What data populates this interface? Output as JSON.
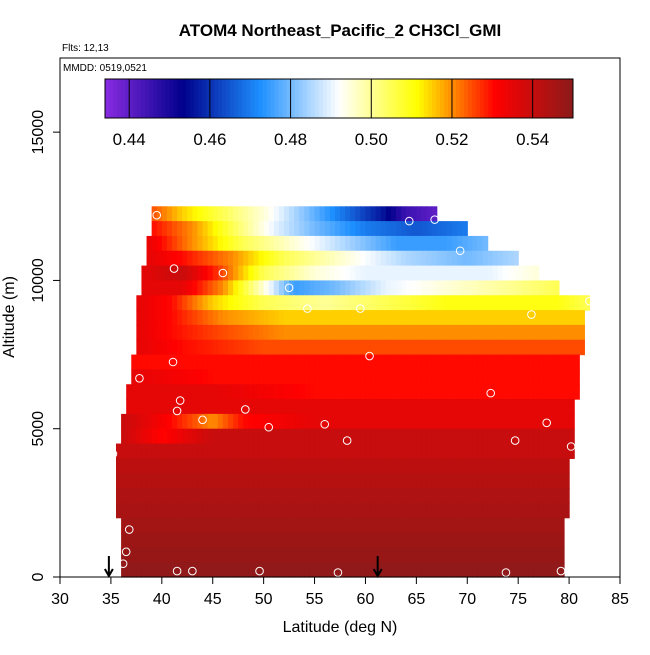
{
  "chart_data": {
    "type": "heatmap",
    "title": "ATOM4 Northeast_Pacific_2 CH3Cl_GMI",
    "flights_label": "Flts: 12,13",
    "dates_label": "MMDD: 0519,0521",
    "xlabel": "Latitude (deg N)",
    "ylabel": "Altitude (m)",
    "xlim": [
      30,
      85
    ],
    "ylim": [
      0,
      17500
    ],
    "x_ticks": [
      "30",
      "35",
      "40",
      "45",
      "50",
      "55",
      "60",
      "65",
      "70",
      "75",
      "80",
      "85"
    ],
    "y_ticks": [
      "0",
      "5000",
      "10000",
      "15000"
    ],
    "colorbar": {
      "min": 0.434,
      "max": 0.55,
      "ticks": [
        "0.44",
        "0.46",
        "0.48",
        "0.50",
        "0.52",
        "0.54"
      ],
      "colors": [
        "#8a2be2",
        "#00008b",
        "#1e90ff",
        "#ffffff",
        "#ffff00",
        "#ff0000",
        "#8b1a1a"
      ]
    },
    "layers": [
      {
        "alt": 12000,
        "lat_start": 39,
        "lat_end": 67,
        "values": [
          [
            39,
            0.525
          ],
          [
            42,
            0.515
          ],
          [
            46,
            0.505
          ],
          [
            50,
            0.495
          ],
          [
            53,
            0.485
          ],
          [
            56,
            0.475
          ],
          [
            59,
            0.465
          ],
          [
            62,
            0.455
          ],
          [
            64,
            0.445
          ],
          [
            67,
            0.44
          ]
        ]
      },
      {
        "alt": 11500,
        "lat_start": 39,
        "lat_end": 70,
        "values": [
          [
            39,
            0.53
          ],
          [
            43,
            0.52
          ],
          [
            47,
            0.505
          ],
          [
            51,
            0.49
          ],
          [
            55,
            0.48
          ],
          [
            60,
            0.47
          ],
          [
            65,
            0.465
          ],
          [
            70,
            0.47
          ]
        ]
      },
      {
        "alt": 11000,
        "lat_start": 38.5,
        "lat_end": 72,
        "values": [
          [
            38.5,
            0.535
          ],
          [
            43,
            0.52
          ],
          [
            48,
            0.505
          ],
          [
            53,
            0.495
          ],
          [
            58,
            0.485
          ],
          [
            63,
            0.475
          ],
          [
            68,
            0.475
          ],
          [
            72,
            0.48
          ]
        ]
      },
      {
        "alt": 10500,
        "lat_start": 38.5,
        "lat_end": 75,
        "values": [
          [
            38.5,
            0.535
          ],
          [
            42,
            0.53
          ],
          [
            47,
            0.52
          ],
          [
            52,
            0.505
          ],
          [
            58,
            0.495
          ],
          [
            64,
            0.485
          ],
          [
            70,
            0.48
          ],
          [
            75,
            0.485
          ]
        ]
      },
      {
        "alt": 10000,
        "lat_start": 38,
        "lat_end": 77,
        "values": [
          [
            38,
            0.535
          ],
          [
            42,
            0.54
          ],
          [
            46,
            0.525
          ],
          [
            50,
            0.505
          ],
          [
            55,
            0.495
          ],
          [
            60,
            0.49
          ],
          [
            66,
            0.49
          ],
          [
            72,
            0.49
          ],
          [
            77,
            0.495
          ]
        ]
      },
      {
        "alt": 9500,
        "lat_start": 38,
        "lat_end": 79,
        "values": [
          [
            38,
            0.535
          ],
          [
            42,
            0.535
          ],
          [
            46,
            0.52
          ],
          [
            50,
            0.495
          ],
          [
            53,
            0.475
          ],
          [
            57,
            0.48
          ],
          [
            62,
            0.49
          ],
          [
            68,
            0.495
          ],
          [
            74,
            0.5
          ],
          [
            79,
            0.505
          ]
        ]
      },
      {
        "alt": 9000,
        "lat_start": 37.5,
        "lat_end": 82,
        "values": [
          [
            37.5,
            0.535
          ],
          [
            41,
            0.53
          ],
          [
            45,
            0.515
          ],
          [
            50,
            0.505
          ],
          [
            56,
            0.5
          ],
          [
            62,
            0.505
          ],
          [
            68,
            0.51
          ],
          [
            74,
            0.51
          ],
          [
            79,
            0.51
          ],
          [
            82,
            0.505
          ]
        ]
      },
      {
        "alt": 8500,
        "lat_start": 37.5,
        "lat_end": 81.5,
        "values": [
          [
            37.5,
            0.535
          ],
          [
            41,
            0.53
          ],
          [
            46,
            0.52
          ],
          [
            52,
            0.515
          ],
          [
            58,
            0.515
          ],
          [
            65,
            0.515
          ],
          [
            72,
            0.515
          ],
          [
            78,
            0.515
          ],
          [
            81.5,
            0.515
          ]
        ]
      },
      {
        "alt": 8000,
        "lat_start": 37.5,
        "lat_end": 81.5,
        "values": [
          [
            37.5,
            0.535
          ],
          [
            41,
            0.53
          ],
          [
            46,
            0.525
          ],
          [
            52,
            0.52
          ],
          [
            60,
            0.52
          ],
          [
            68,
            0.52
          ],
          [
            75,
            0.52
          ],
          [
            81.5,
            0.52
          ]
        ]
      },
      {
        "alt": 7500,
        "lat_start": 37.5,
        "lat_end": 81.5,
        "values": [
          [
            37.5,
            0.535
          ],
          [
            42,
            0.53
          ],
          [
            50,
            0.525
          ],
          [
            60,
            0.525
          ],
          [
            70,
            0.525
          ],
          [
            81.5,
            0.525
          ]
        ]
      },
      {
        "alt": 7000,
        "lat_start": 37,
        "lat_end": 81,
        "values": [
          [
            37,
            0.53
          ],
          [
            45,
            0.53
          ],
          [
            55,
            0.53
          ],
          [
            65,
            0.53
          ],
          [
            75,
            0.53
          ],
          [
            81,
            0.53
          ]
        ]
      },
      {
        "alt": 6500,
        "lat_start": 37,
        "lat_end": 81,
        "values": [
          [
            37,
            0.535
          ],
          [
            45,
            0.53
          ],
          [
            55,
            0.53
          ],
          [
            65,
            0.53
          ],
          [
            75,
            0.53
          ],
          [
            81,
            0.53
          ]
        ]
      },
      {
        "alt": 6000,
        "lat_start": 36.5,
        "lat_end": 81,
        "values": [
          [
            36.5,
            0.535
          ],
          [
            45,
            0.535
          ],
          [
            55,
            0.53
          ],
          [
            65,
            0.53
          ],
          [
            75,
            0.53
          ],
          [
            81,
            0.53
          ]
        ]
      },
      {
        "alt": 5500,
        "lat_start": 36.5,
        "lat_end": 80.5,
        "values": [
          [
            36.5,
            0.535
          ],
          [
            45,
            0.535
          ],
          [
            55,
            0.535
          ],
          [
            65,
            0.535
          ],
          [
            75,
            0.535
          ],
          [
            80.5,
            0.535
          ]
        ]
      },
      {
        "alt": 5000,
        "lat_start": 36,
        "lat_end": 80.5,
        "values": [
          [
            36,
            0.54
          ],
          [
            41,
            0.53
          ],
          [
            45,
            0.52
          ],
          [
            48,
            0.53
          ],
          [
            55,
            0.535
          ],
          [
            65,
            0.535
          ],
          [
            75,
            0.535
          ],
          [
            80.5,
            0.535
          ]
        ]
      },
      {
        "alt": 4500,
        "lat_start": 36,
        "lat_end": 80.5,
        "values": [
          [
            36,
            0.54
          ],
          [
            40,
            0.53
          ],
          [
            45,
            0.54
          ],
          [
            55,
            0.54
          ],
          [
            65,
            0.54
          ],
          [
            75,
            0.54
          ],
          [
            80.5,
            0.54
          ]
        ]
      },
      {
        "alt": 4000,
        "lat_start": 35.5,
        "lat_end": 80.5,
        "values": [
          [
            35.5,
            0.54
          ],
          [
            45,
            0.54
          ],
          [
            55,
            0.54
          ],
          [
            65,
            0.54
          ],
          [
            75,
            0.54
          ],
          [
            80.5,
            0.54
          ]
        ]
      },
      {
        "alt": 3500,
        "lat_start": 35.5,
        "lat_end": 80,
        "values": [
          [
            35.5,
            0.542
          ],
          [
            50,
            0.542
          ],
          [
            65,
            0.542
          ],
          [
            80,
            0.542
          ]
        ]
      },
      {
        "alt": 3000,
        "lat_start": 35.5,
        "lat_end": 80,
        "values": [
          [
            35.5,
            0.543
          ],
          [
            50,
            0.543
          ],
          [
            65,
            0.543
          ],
          [
            80,
            0.543
          ]
        ]
      },
      {
        "alt": 2500,
        "lat_start": 35.5,
        "lat_end": 80,
        "values": [
          [
            35.5,
            0.544
          ],
          [
            50,
            0.544
          ],
          [
            65,
            0.544
          ],
          [
            80,
            0.544
          ]
        ]
      },
      {
        "alt": 2000,
        "lat_start": 35.5,
        "lat_end": 80,
        "values": [
          [
            35.5,
            0.545
          ],
          [
            50,
            0.545
          ],
          [
            65,
            0.545
          ],
          [
            80,
            0.545
          ]
        ]
      },
      {
        "alt": 1500,
        "lat_start": 36,
        "lat_end": 79.5,
        "values": [
          [
            36,
            0.546
          ],
          [
            50,
            0.546
          ],
          [
            65,
            0.546
          ],
          [
            79.5,
            0.546
          ]
        ]
      },
      {
        "alt": 1000,
        "lat_start": 36,
        "lat_end": 79.5,
        "values": [
          [
            36,
            0.547
          ],
          [
            50,
            0.547
          ],
          [
            65,
            0.547
          ],
          [
            79.5,
            0.547
          ]
        ]
      },
      {
        "alt": 500,
        "lat_start": 36,
        "lat_end": 79.5,
        "values": [
          [
            36,
            0.548
          ],
          [
            50,
            0.548
          ],
          [
            65,
            0.548
          ],
          [
            79.5,
            0.548
          ]
        ]
      },
      {
        "alt": 0,
        "lat_start": 36,
        "lat_end": 79.5,
        "values": [
          [
            36,
            0.549
          ],
          [
            50,
            0.549
          ],
          [
            65,
            0.549
          ],
          [
            79.5,
            0.549
          ]
        ]
      }
    ],
    "points": [
      [
        39.5,
        12200
      ],
      [
        64.3,
        12000
      ],
      [
        66.8,
        12050
      ],
      [
        69.3,
        11000
      ],
      [
        41.2,
        10400
      ],
      [
        46,
        10250
      ],
      [
        52.5,
        9750
      ],
      [
        54.3,
        9050
      ],
      [
        59.5,
        9050
      ],
      [
        76.3,
        8850
      ],
      [
        82,
        9300
      ],
      [
        41.1,
        7250
      ],
      [
        37.8,
        6700
      ],
      [
        60.4,
        7450
      ],
      [
        72.3,
        6200
      ],
      [
        41.8,
        5950
      ],
      [
        41.5,
        5600
      ],
      [
        48.2,
        5650
      ],
      [
        44,
        5300
      ],
      [
        56,
        5150
      ],
      [
        50.5,
        5050
      ],
      [
        58.2,
        4600
      ],
      [
        74.7,
        4600
      ],
      [
        77.8,
        5200
      ],
      [
        80.2,
        4400
      ],
      [
        35.2,
        4150
      ],
      [
        36.8,
        1600
      ],
      [
        36.5,
        850
      ],
      [
        36.2,
        450
      ],
      [
        41.5,
        200
      ],
      [
        43,
        200
      ],
      [
        49.6,
        200
      ],
      [
        57.3,
        150
      ],
      [
        73.8,
        150
      ],
      [
        79.2,
        200
      ]
    ],
    "arrows": [
      34.8,
      61.2
    ]
  }
}
